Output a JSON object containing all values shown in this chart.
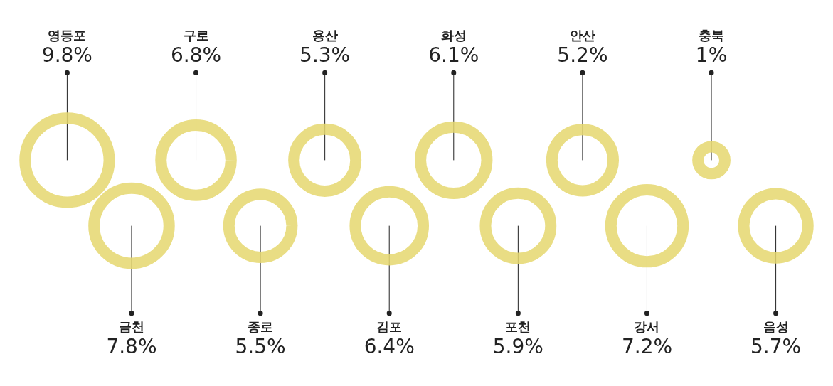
{
  "chart_data": {
    "type": "other",
    "categories": [
      "영등포",
      "금천",
      "구로",
      "종로",
      "용산",
      "김포",
      "화성",
      "포천",
      "안산",
      "강서",
      "충북",
      "음성"
    ],
    "values": [
      9.8,
      7.8,
      6.8,
      5.5,
      5.3,
      6.4,
      6.1,
      5.9,
      5.2,
      7.2,
      1,
      5.7
    ],
    "value_labels": [
      "9.8%",
      "7.8%",
      "6.8%",
      "5.5%",
      "5.3%",
      "6.4%",
      "6.1%",
      "5.9%",
      "5.2%",
      "7.2%",
      "1%",
      "5.7%"
    ],
    "color": "#e6d86f"
  }
}
